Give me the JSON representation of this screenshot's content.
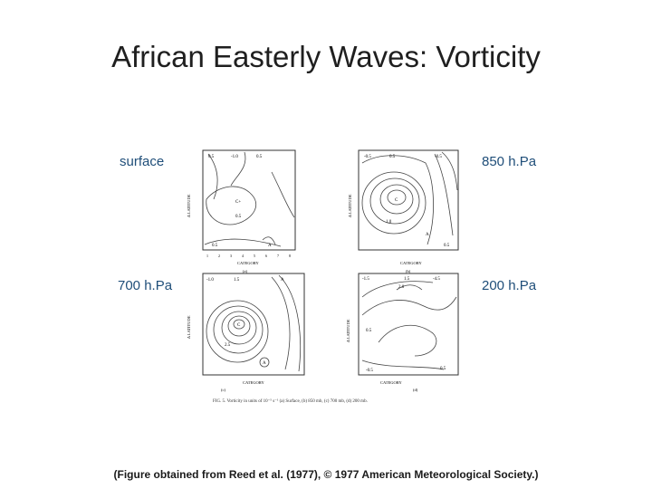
{
  "slide": {
    "title": "African Easterly Waves: Vorticity",
    "source_note": "(Figure obtained from Reed et al. (1977), © 1977 American Meteorological Society.)"
  },
  "panels": [
    {
      "label": "surface",
      "letter": "(a)"
    },
    {
      "label": "850 h.Pa",
      "letter": "(b)"
    },
    {
      "label": "700 h.Pa",
      "letter": "(c)"
    },
    {
      "label": "200 h.Pa",
      "letter": "(d)"
    }
  ],
  "figure": {
    "x_axis_title": "CATEGORY",
    "y_axis_title": "Δ LATITUDE",
    "x_ticks": [
      "1",
      "2",
      "3",
      "4",
      "5",
      "6",
      "7",
      "8"
    ],
    "caption": "FIG. 5. Vorticity in units of 10⁻⁵ s⁻¹ (a) Surface, (b) 850 mb, (c) 700 mb, (d) 200 mb."
  }
}
